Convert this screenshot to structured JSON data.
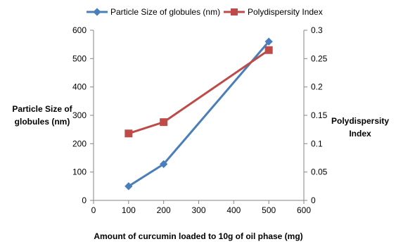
{
  "chart_data": {
    "type": "line",
    "title": "",
    "xlabel": "Amount of curcumin loaded to 10g of oil phase (mg)",
    "ylabel": "Particle Size of globules (nm)",
    "y2label": "Polydispersity Index",
    "xlim": [
      0,
      600
    ],
    "ylim": [
      0,
      600
    ],
    "y2lim": [
      0,
      0.3
    ],
    "xticks": [
      0,
      100,
      200,
      300,
      400,
      500,
      600
    ],
    "yticks": [
      0,
      100,
      200,
      300,
      400,
      500,
      600
    ],
    "y2ticks": [
      0,
      0.05,
      0.1,
      0.15,
      0.2,
      0.25,
      0.3
    ],
    "grid": false,
    "legend_position": "top",
    "series": [
      {
        "name": "Particle Size of globules (nm)",
        "axis": "left",
        "color": "#4a7ebb",
        "marker": "diamond",
        "x": [
          100,
          200,
          500
        ],
        "y": [
          50,
          128,
          560
        ]
      },
      {
        "name": "Polydispersity Index",
        "axis": "right",
        "color": "#be4b48",
        "marker": "square",
        "x": [
          100,
          200,
          500
        ],
        "y": [
          0.118,
          0.138,
          0.265
        ]
      }
    ]
  }
}
